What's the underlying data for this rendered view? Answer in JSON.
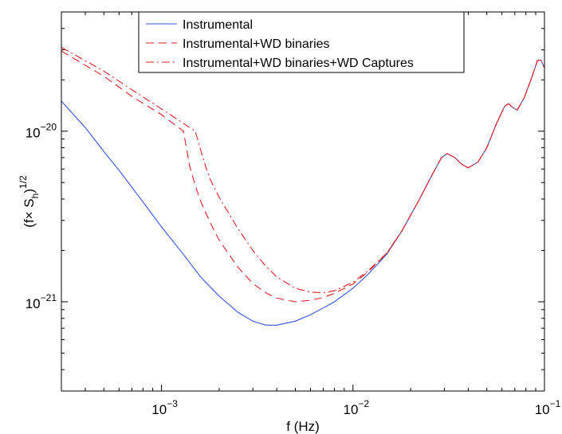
{
  "chart_data": {
    "type": "line",
    "title": "",
    "xlabel": "f (Hz)",
    "ylabel": {
      "base": "(f× S",
      "sub": "h",
      "close": ")",
      "sup": "1/2"
    },
    "xscale": "log",
    "yscale": "log",
    "xlim": [
      0.0003,
      0.1
    ],
    "ylim": [
      3e-22,
      5e-20
    ],
    "x_ticks": [
      {
        "value": 0.001,
        "base": "10",
        "exp": "−3"
      },
      {
        "value": 0.01,
        "base": "10",
        "exp": "−2"
      },
      {
        "value": 0.1,
        "base": "10",
        "exp": "−1"
      }
    ],
    "y_ticks": [
      {
        "value": 1e-21,
        "base": "10",
        "exp": "−21"
      },
      {
        "value": 1e-20,
        "base": "10",
        "exp": "−20"
      }
    ],
    "grid": false,
    "legend_position": "top-center",
    "series": [
      {
        "name": "Instrumental",
        "color": "#3355dd",
        "dash": "solid",
        "points": [
          [
            0.0003,
            1.5e-20
          ],
          [
            0.0004,
            1.05e-20
          ],
          [
            0.0005,
            7.6e-21
          ],
          [
            0.0006,
            5.9e-21
          ],
          [
            0.0008,
            3.85e-21
          ],
          [
            0.001,
            2.75e-21
          ],
          [
            0.0013,
            1.9e-21
          ],
          [
            0.0016,
            1.4e-21
          ],
          [
            0.002,
            1.08e-21
          ],
          [
            0.0025,
            8.7e-22
          ],
          [
            0.003,
            7.7e-22
          ],
          [
            0.0035,
            7.3e-22
          ],
          [
            0.004,
            7.3e-22
          ],
          [
            0.005,
            7.7e-22
          ],
          [
            0.006,
            8.4e-22
          ],
          [
            0.007,
            9.2e-22
          ],
          [
            0.008,
            1e-21
          ],
          [
            0.01,
            1.2e-21
          ],
          [
            0.012,
            1.45e-21
          ],
          [
            0.015,
            1.9e-21
          ],
          [
            0.018,
            2.6e-21
          ],
          [
            0.022,
            3.9e-21
          ],
          [
            0.026,
            5.6e-21
          ],
          [
            0.029,
            7e-21
          ],
          [
            0.031,
            7.4e-21
          ],
          [
            0.034,
            7e-21
          ],
          [
            0.037,
            6.4e-21
          ],
          [
            0.04,
            6.1e-21
          ],
          [
            0.045,
            6.6e-21
          ],
          [
            0.05,
            8e-21
          ],
          [
            0.056,
            1.1e-20
          ],
          [
            0.062,
            1.4e-20
          ],
          [
            0.065,
            1.45e-20
          ],
          [
            0.068,
            1.38e-20
          ],
          [
            0.072,
            1.33e-20
          ],
          [
            0.078,
            1.55e-20
          ],
          [
            0.085,
            2e-20
          ],
          [
            0.092,
            2.6e-20
          ],
          [
            0.096,
            2.6e-20
          ],
          [
            0.1,
            2.35e-20
          ]
        ]
      },
      {
        "name": "Instrumental+WD binaries",
        "color": "#dd2222",
        "dash": "dash",
        "points": [
          [
            0.0003,
            2.95e-20
          ],
          [
            0.0005,
            2.1e-20
          ],
          [
            0.0007,
            1.6e-20
          ],
          [
            0.001,
            1.25e-20
          ],
          [
            0.0013,
            1e-20
          ],
          [
            0.00135,
            8e-21
          ],
          [
            0.0014,
            6.3e-21
          ],
          [
            0.0015,
            4.8e-21
          ],
          [
            0.0016,
            3.9e-21
          ],
          [
            0.0018,
            2.9e-21
          ],
          [
            0.002,
            2.3e-21
          ],
          [
            0.0025,
            1.6e-21
          ],
          [
            0.003,
            1.28e-21
          ],
          [
            0.0035,
            1.13e-21
          ],
          [
            0.004,
            1.05e-21
          ],
          [
            0.005,
            1e-21
          ],
          [
            0.006,
            1.02e-21
          ],
          [
            0.007,
            1.06e-21
          ],
          [
            0.008,
            1.12e-21
          ],
          [
            0.01,
            1.27e-21
          ],
          [
            0.012,
            1.5e-21
          ],
          [
            0.015,
            1.92e-21
          ],
          [
            0.018,
            2.6e-21
          ],
          [
            0.022,
            3.9e-21
          ],
          [
            0.026,
            5.6e-21
          ],
          [
            0.029,
            7e-21
          ],
          [
            0.031,
            7.4e-21
          ],
          [
            0.034,
            7e-21
          ],
          [
            0.037,
            6.4e-21
          ],
          [
            0.04,
            6.1e-21
          ],
          [
            0.045,
            6.6e-21
          ],
          [
            0.05,
            8e-21
          ],
          [
            0.056,
            1.1e-20
          ],
          [
            0.062,
            1.4e-20
          ],
          [
            0.065,
            1.45e-20
          ],
          [
            0.068,
            1.38e-20
          ],
          [
            0.072,
            1.33e-20
          ],
          [
            0.078,
            1.55e-20
          ],
          [
            0.085,
            2e-20
          ],
          [
            0.092,
            2.6e-20
          ],
          [
            0.096,
            2.6e-20
          ],
          [
            0.1,
            2.35e-20
          ]
        ]
      },
      {
        "name": "Instrumental+WD binaries+WD Captures",
        "color": "#dd2222",
        "dash": "dashdot",
        "points": [
          [
            0.0003,
            3.1e-20
          ],
          [
            0.0005,
            2.25e-20
          ],
          [
            0.0007,
            1.75e-20
          ],
          [
            0.001,
            1.35e-20
          ],
          [
            0.0015,
            1e-20
          ],
          [
            0.0016,
            7.8e-21
          ],
          [
            0.0017,
            6.2e-21
          ],
          [
            0.0018,
            5.2e-21
          ],
          [
            0.002,
            4.1e-21
          ],
          [
            0.0025,
            2.7e-21
          ],
          [
            0.003,
            2e-21
          ],
          [
            0.0035,
            1.62e-21
          ],
          [
            0.004,
            1.4e-21
          ],
          [
            0.005,
            1.2e-21
          ],
          [
            0.006,
            1.14e-21
          ],
          [
            0.007,
            1.13e-21
          ],
          [
            0.008,
            1.16e-21
          ],
          [
            0.01,
            1.3e-21
          ],
          [
            0.012,
            1.52e-21
          ],
          [
            0.015,
            1.93e-21
          ],
          [
            0.018,
            2.6e-21
          ],
          [
            0.022,
            3.9e-21
          ],
          [
            0.026,
            5.6e-21
          ],
          [
            0.029,
            7e-21
          ],
          [
            0.031,
            7.4e-21
          ],
          [
            0.034,
            7e-21
          ],
          [
            0.037,
            6.4e-21
          ],
          [
            0.04,
            6.1e-21
          ],
          [
            0.045,
            6.6e-21
          ],
          [
            0.05,
            8e-21
          ],
          [
            0.056,
            1.1e-20
          ],
          [
            0.062,
            1.4e-20
          ],
          [
            0.065,
            1.45e-20
          ],
          [
            0.068,
            1.38e-20
          ],
          [
            0.072,
            1.33e-20
          ],
          [
            0.078,
            1.55e-20
          ],
          [
            0.085,
            2e-20
          ],
          [
            0.092,
            2.6e-20
          ],
          [
            0.096,
            2.6e-20
          ],
          [
            0.1,
            2.35e-20
          ]
        ]
      }
    ]
  }
}
